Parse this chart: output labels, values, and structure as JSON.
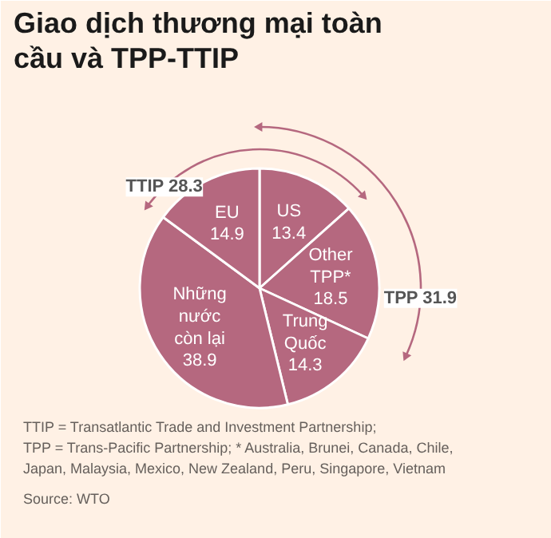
{
  "chart_data": {
    "type": "pie",
    "title": "Giao dịch thương mại toàn cầu và TPP-TTIP",
    "categories": [
      "US",
      "Other TPP*",
      "Trung Quốc",
      "Những nước còn lại",
      "EU"
    ],
    "values": [
      13.4,
      18.5,
      14.3,
      38.9,
      14.9
    ],
    "colors": [
      "#b5687f",
      "#b5687f",
      "#b5687f",
      "#b5687f",
      "#b5687f"
    ],
    "data_labels": true,
    "annotations": [
      "TTIP 28.3",
      "TPP 31.9",
      "TTIP = Transatlantic Trade and Investment Partnership;",
      "TPP = Trans-Pacific Partnership;  * Australia, Brunei, Canada, Chile, Japan, Malaysia, Mexico, New Zealand, Peru, Singapore, Vietnam",
      "Source: WTO"
    ]
  }
}
